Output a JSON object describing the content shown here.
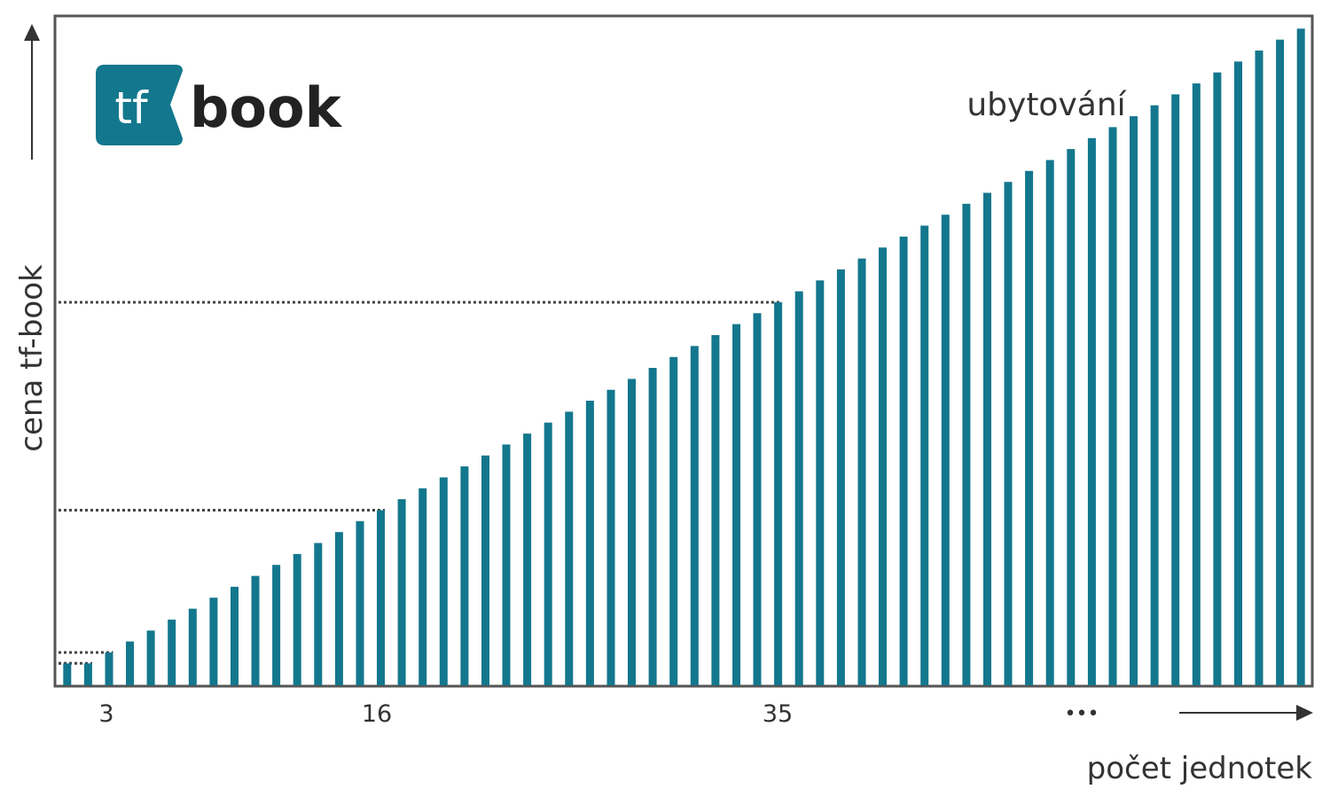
{
  "brand": {
    "logo_mark": "tf",
    "logo_word": "book",
    "accent_color": "#13778d",
    "text_color": "#222222"
  },
  "chart_data": {
    "type": "bar",
    "series_label": "ubytování",
    "ylabel": "cena tf-book",
    "xlabel": "počet jednotek",
    "x_tick_labels": [
      "3",
      "16",
      "35"
    ],
    "ellipsis": "•••",
    "bar_color": "#13778d",
    "axis_color": "#555555",
    "units": [
      1,
      2,
      3,
      4,
      5,
      6,
      7,
      8,
      9,
      10,
      11,
      12,
      13,
      14,
      15,
      16,
      17,
      18,
      19,
      20,
      21,
      22,
      23,
      24,
      25,
      26,
      27,
      28,
      29,
      30,
      31,
      32,
      33,
      34,
      35,
      36,
      37,
      38,
      39,
      40,
      41,
      42,
      43,
      44,
      45,
      46,
      47,
      48,
      49,
      50,
      51,
      52,
      53,
      54,
      55,
      56,
      57,
      58,
      59,
      60
    ],
    "values": [
      2,
      2,
      3,
      4,
      5,
      6,
      7,
      8,
      9,
      10,
      11,
      12,
      13,
      14,
      15,
      16,
      17,
      18,
      19,
      20,
      21,
      22,
      23,
      24,
      25,
      26,
      27,
      28,
      29,
      30,
      31,
      32,
      33,
      34,
      35,
      36,
      37,
      38,
      39,
      40,
      41,
      42,
      43,
      44,
      45,
      46,
      47,
      48,
      49,
      50,
      51,
      52,
      53,
      54,
      55,
      56,
      57,
      58,
      59,
      60
    ],
    "reference_units": [
      1,
      2,
      3,
      16,
      35
    ],
    "ylim": [
      0,
      61
    ],
    "grid": false
  }
}
